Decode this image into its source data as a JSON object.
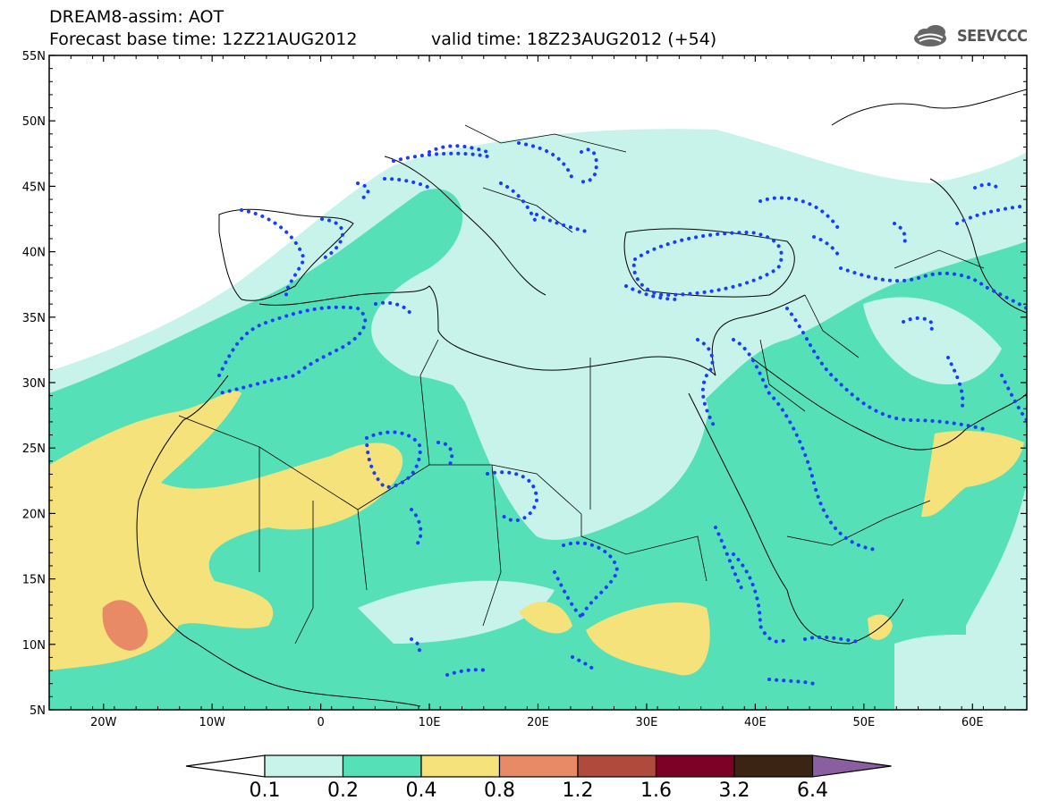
{
  "header": {
    "line1": "DREAM8-assim: AOT",
    "line2_left": "Forecast base time: 12Z21AUG2012",
    "line2_right": "valid time: 18Z23AUG2012 (+54)",
    "logo_text": "SEEVCCC"
  },
  "map": {
    "lat_ticks": [
      "55N",
      "50N",
      "45N",
      "40N",
      "35N",
      "30N",
      "25N",
      "20N",
      "15N",
      "10N",
      "5N"
    ],
    "lon_ticks": [
      "20W",
      "10W",
      "0",
      "10E",
      "20E",
      "30E",
      "40E",
      "50E",
      "60E"
    ],
    "lon_range": [
      -25,
      65
    ],
    "lat_range": [
      5,
      55
    ]
  },
  "colorbar": {
    "labels": [
      "0.1",
      "0.2",
      "0.4",
      "0.8",
      "1.2",
      "1.6",
      "3.2",
      "6.4"
    ],
    "colors": [
      "#ffffff",
      "#c7f3ea",
      "#55e0b8",
      "#f5e27a",
      "#e88a66",
      "#b04a3c",
      "#7d0026",
      "#3c2414",
      "#8a5fa0"
    ]
  },
  "colors": {
    "c1": "#c7f3ea",
    "c2": "#55e0b8",
    "c3": "#f5e27a",
    "c4": "#e88a66",
    "dots": "#1a3cff"
  }
}
